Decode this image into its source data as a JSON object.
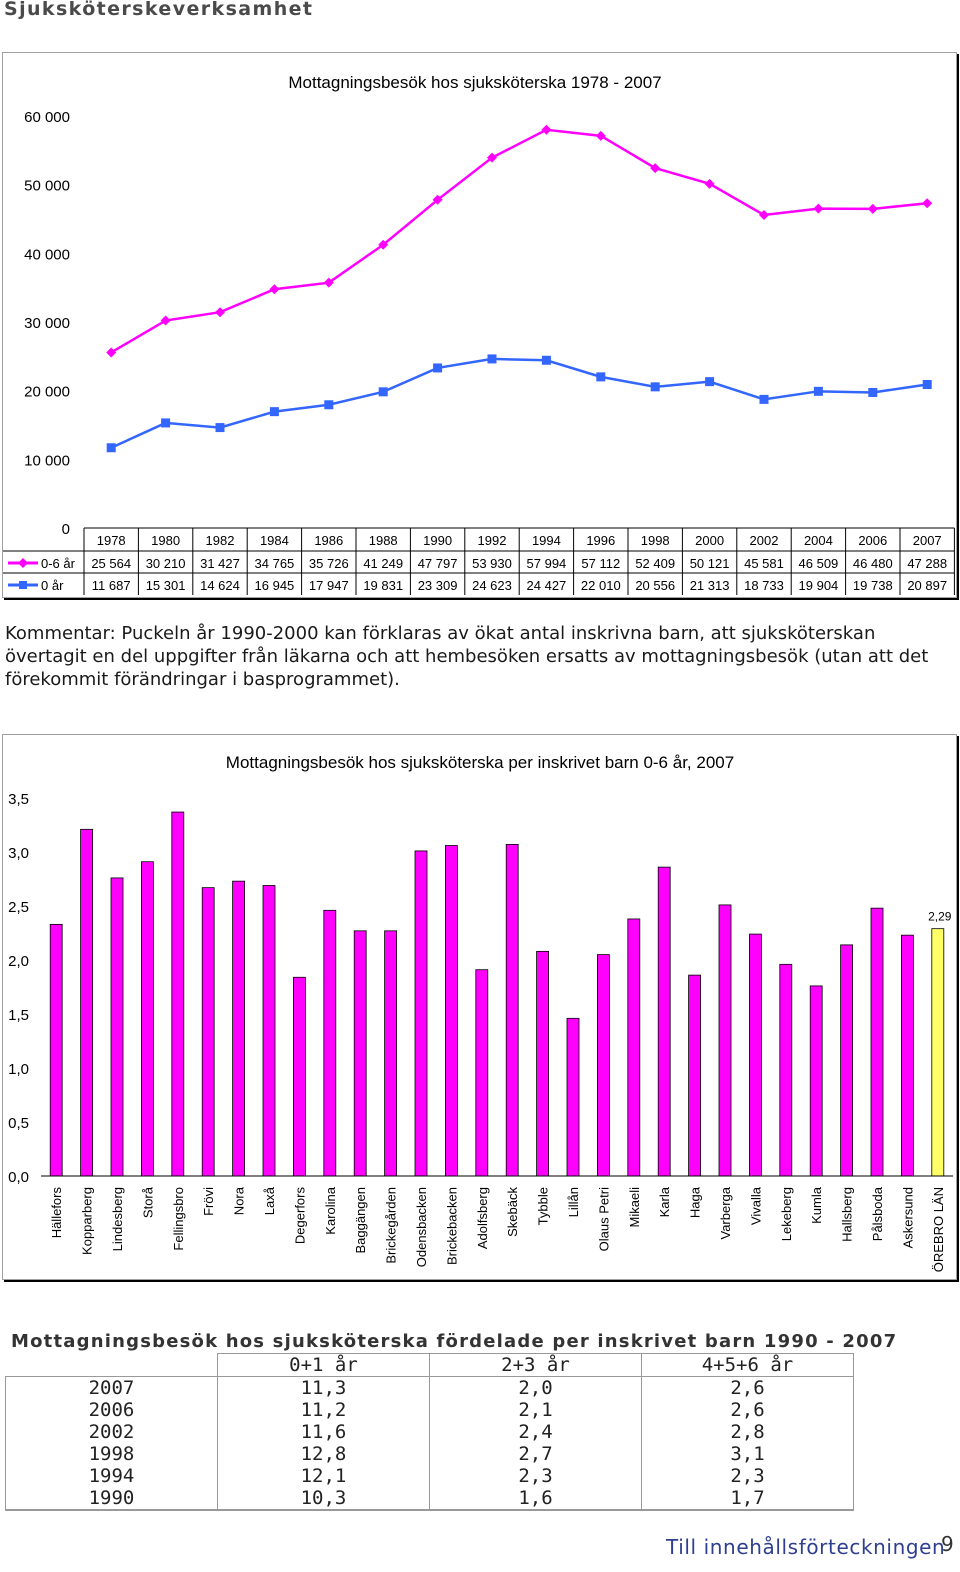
{
  "page": {
    "heading": "Sjuksköterskeverksamhet",
    "comment": "Kommentar: Puckeln år 1990-2000 kan förklaras av ökat antal inskrivna barn, att sjuksköterskan övertagit en del uppgifter från läkarna och att hembesöken ersatts av mottagningsbesök (utan att det förekommit förändringar i basprogrammet).",
    "toc_link": "Till innehållsförteckningen",
    "page_number": "9"
  },
  "chart_data": [
    {
      "type": "line",
      "title": "Mottagningsbesök hos sjuksköterska 1978 - 2007",
      "x": [
        "1978",
        "1980",
        "1982",
        "1984",
        "1986",
        "1988",
        "1990",
        "1992",
        "1994",
        "1996",
        "1998",
        "2000",
        "2002",
        "2004",
        "2006",
        "2007"
      ],
      "series": [
        {
          "name": "0-6 år",
          "color": "#ff00ff",
          "marker": "diamond",
          "values": [
            25564,
            30210,
            31427,
            34765,
            35726,
            41249,
            47797,
            53930,
            57994,
            57112,
            52409,
            50121,
            45581,
            46509,
            46480,
            47288
          ],
          "labels": [
            "25 564",
            "30 210",
            "31 427",
            "34 765",
            "35 726",
            "41 249",
            "47 797",
            "53 930",
            "57 994",
            "57 112",
            "52 409",
            "50 121",
            "45 581",
            "46 509",
            "46 480",
            "47 288"
          ]
        },
        {
          "name": "0 år",
          "color": "#3366ff",
          "marker": "square",
          "values": [
            11687,
            15301,
            14624,
            16945,
            17947,
            19831,
            23309,
            24623,
            24427,
            22010,
            20556,
            21313,
            18733,
            19904,
            19738,
            20897
          ],
          "labels": [
            "11 687",
            "15 301",
            "14 624",
            "16 945",
            "17 947",
            "19 831",
            "23 309",
            "24 623",
            "24 427",
            "22 010",
            "20 556",
            "21 313",
            "18 733",
            "19 904",
            "19 738",
            "20 897"
          ]
        }
      ],
      "ylim": [
        0,
        60000
      ],
      "yticks": [
        0,
        10000,
        20000,
        30000,
        40000,
        50000,
        60000
      ],
      "ytick_labels": [
        "0",
        "10 000",
        "20 000",
        "30 000",
        "40 000",
        "50 000",
        "60 000"
      ],
      "grid": false,
      "legend": "data-table-below"
    },
    {
      "type": "bar",
      "title": "Mottagningsbesök hos sjuksköterska per inskrivet barn 0-6 år, 2007",
      "categories": [
        "Hällefors",
        "Kopparberg",
        "Lindesberg",
        "Storå",
        "Fellingsbro",
        "Frövi",
        "Nora",
        "Laxå",
        "Degerfors",
        "Karolina",
        "Baggängen",
        "Brickegården",
        "Odensbacken",
        "Brickebacken",
        "Adolfsberg",
        "Skebäck",
        "Tybble",
        "Lillån",
        "Olaus Petri",
        "Mikaeli",
        "Karla",
        "Haga",
        "Varberga",
        "Vivalla",
        "Lekeberg",
        "Kumla",
        "Hallsberg",
        "Pålsboda",
        "Askersund",
        "ÖREBRO LÄN"
      ],
      "values": [
        2.33,
        3.21,
        2.76,
        2.91,
        3.37,
        2.67,
        2.73,
        2.69,
        1.84,
        2.46,
        2.27,
        2.27,
        3.01,
        3.06,
        1.91,
        3.07,
        2.08,
        1.46,
        2.05,
        2.38,
        2.86,
        1.86,
        2.51,
        2.24,
        1.96,
        1.76,
        2.14,
        2.48,
        2.23,
        2.29
      ],
      "bar_color": "#ff00ff",
      "highlight_color": "#ffff66",
      "highlight_index": 29,
      "data_label": "2,29",
      "ylim": [
        0,
        3.5
      ],
      "yticks": [
        0,
        0.5,
        1,
        1.5,
        2,
        2.5,
        3,
        3.5
      ],
      "ytick_labels": [
        "0,0",
        "0,5",
        "1,0",
        "1,5",
        "2,0",
        "2,5",
        "3,0",
        "3,5"
      ],
      "grid": false
    }
  ],
  "table": {
    "title": "Mottagningsbesök hos sjuksköterska fördelade per inskrivet barn 1990 - 2007",
    "headers": [
      "",
      "0+1 år",
      "2+3 år",
      "4+5+6 år"
    ],
    "rows": [
      [
        "2007",
        "11,3",
        "2,0",
        "2,6"
      ],
      [
        "2006",
        "11,2",
        "2,1",
        "2,6"
      ],
      [
        "2002",
        "11,6",
        "2,4",
        "2,8"
      ],
      [
        "1998",
        "12,8",
        "2,7",
        "3,1"
      ],
      [
        "1994",
        "12,1",
        "2,3",
        "2,3"
      ],
      [
        "1990",
        "10,3",
        "1,6",
        "1,7"
      ]
    ]
  }
}
